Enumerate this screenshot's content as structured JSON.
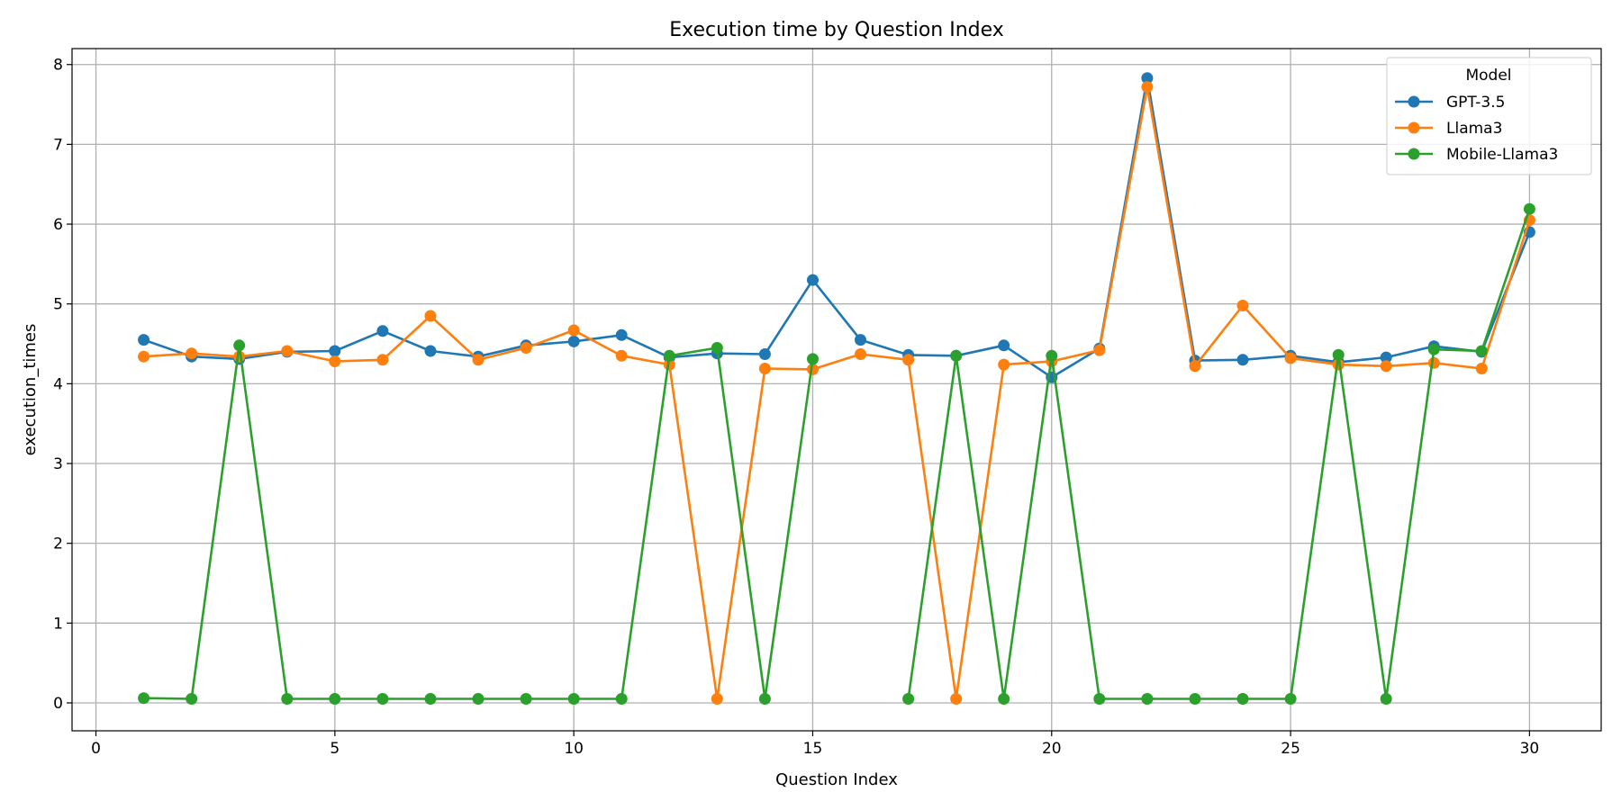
{
  "chart_data": {
    "type": "line",
    "title": "Execution time by Question Index",
    "xlabel": "Question Index",
    "ylabel": "execution_times",
    "xlim": [
      -0.5,
      31.5
    ],
    "ylim": [
      -0.35,
      8.2
    ],
    "xticks": [
      0,
      5,
      10,
      15,
      20,
      25,
      30
    ],
    "yticks": [
      0,
      1,
      2,
      3,
      4,
      5,
      6,
      7,
      8
    ],
    "grid": true,
    "legend": {
      "title": "Model",
      "position": "top-right"
    },
    "x": [
      1,
      2,
      3,
      4,
      5,
      6,
      7,
      8,
      9,
      10,
      11,
      12,
      13,
      14,
      15,
      16,
      17,
      18,
      19,
      20,
      21,
      22,
      23,
      24,
      25,
      26,
      27,
      28,
      29,
      30
    ],
    "series": [
      {
        "name": "GPT-3.5",
        "color": "#1f77b4",
        "values": [
          4.55,
          4.34,
          4.31,
          4.4,
          4.41,
          4.66,
          4.41,
          4.34,
          4.48,
          4.53,
          4.61,
          4.33,
          4.38,
          4.37,
          5.3,
          4.55,
          4.36,
          4.35,
          4.48,
          4.08,
          4.44,
          7.83,
          4.29,
          4.3,
          4.35,
          4.27,
          4.33,
          4.47,
          4.4,
          5.9
        ]
      },
      {
        "name": "Llama3",
        "color": "#ff7f0e",
        "values": [
          4.34,
          4.38,
          4.34,
          4.41,
          4.28,
          4.3,
          4.85,
          4.3,
          4.45,
          4.67,
          4.35,
          4.24,
          0.05,
          4.19,
          4.18,
          4.37,
          4.3,
          0.05,
          4.24,
          4.28,
          4.42,
          7.72,
          4.22,
          4.98,
          4.32,
          4.24,
          4.22,
          4.26,
          4.19,
          6.05
        ]
      },
      {
        "name": "Mobile-Llama3",
        "color": "#2ca02c",
        "values": [
          0.06,
          0.05,
          4.48,
          0.05,
          0.05,
          0.05,
          0.05,
          0.05,
          0.05,
          0.05,
          0.05,
          4.35,
          4.45,
          0.05,
          4.31,
          null,
          0.05,
          4.35,
          0.05,
          4.35,
          0.05,
          0.05,
          0.05,
          0.05,
          0.05,
          4.36,
          0.05,
          4.43,
          4.41,
          6.19
        ]
      }
    ]
  }
}
